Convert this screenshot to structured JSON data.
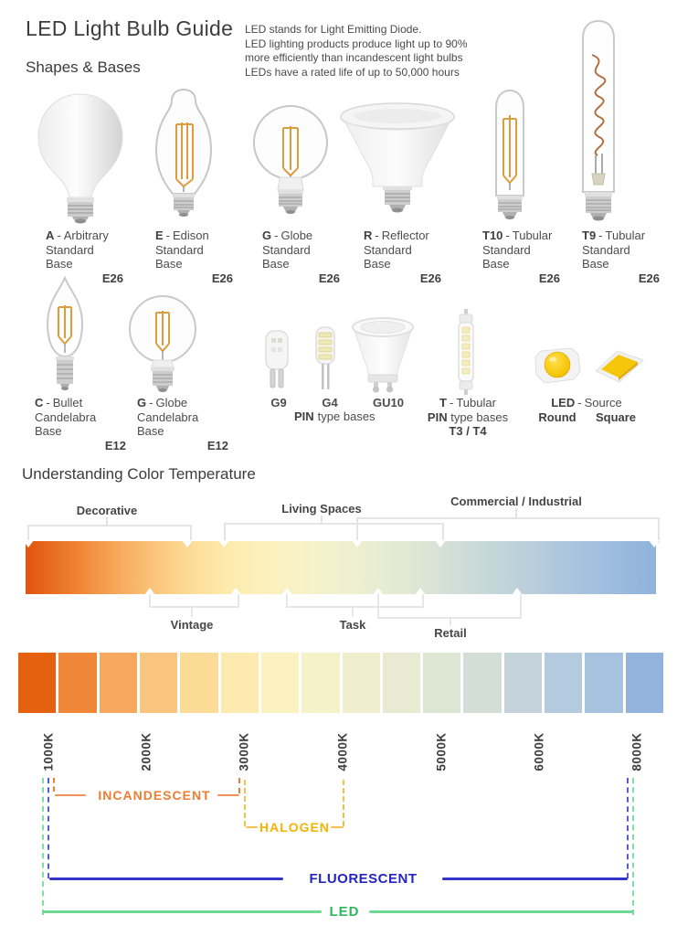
{
  "header": {
    "title": "LED Light Bulb Guide",
    "subtitle": "Shapes & Bases",
    "description_lines": [
      "LED stands for Light Emitting Diode.",
      "LED lighting products produce light up to 90%",
      "more efficiently than incandescent light bulbs",
      "LEDs have a rated life of up to 50,000 hours"
    ]
  },
  "shapes": {
    "row1": [
      {
        "code": "A",
        "sep": "-",
        "name": "Arbitrary",
        "base": "Standard Base",
        "socket": "E26"
      },
      {
        "code": "E",
        "sep": "-",
        "name": "Edison",
        "base": "Standard Base",
        "socket": "E26"
      },
      {
        "code": "G",
        "sep": "-",
        "name": "Globe",
        "base": "Standard Base",
        "socket": "E26"
      },
      {
        "code": "R",
        "sep": "-",
        "name": "Reflector",
        "base": "Standard Base",
        "socket": "E26"
      },
      {
        "code": "T10",
        "sep": "-",
        "name": "Tubular",
        "base": "Standard Base",
        "socket": "E26"
      },
      {
        "code": "T9",
        "sep": "-",
        "name": "Tubular",
        "base": "Standard Base",
        "socket": "E26"
      }
    ],
    "row2": [
      {
        "code": "C",
        "sep": "-",
        "name": "Bullet",
        "base": "Candelabra Base",
        "socket": "E12"
      },
      {
        "code": "G",
        "sep": "-",
        "name": "Globe",
        "base": "Candelabra Base",
        "socket": "E12"
      }
    ],
    "pin_group": {
      "g9": "G9",
      "g4": "G4",
      "gu10": "GU10",
      "pin": "PIN",
      "pin_rest": "type bases"
    },
    "t_group": {
      "code": "T",
      "sep": "-",
      "name": "Tubular",
      "pin": "PIN",
      "pin_rest": "type bases",
      "sizes": "T3 / T4"
    },
    "led_group": {
      "code": "LED",
      "sep": "-",
      "name": "Source",
      "round": "Round",
      "square": "Square"
    }
  },
  "color_temperature": {
    "section_title": "Understanding Color Temperature",
    "zones_top": [
      {
        "label": "Decorative"
      },
      {
        "label": "Living Spaces"
      },
      {
        "label": "Commercial / Industrial"
      }
    ],
    "zones_bottom": [
      {
        "label": "Vintage"
      },
      {
        "label": "Task"
      },
      {
        "label": "Retail"
      }
    ],
    "kelvin_labels": [
      "1000K",
      "2000K",
      "3000K",
      "4000K",
      "5000K",
      "6000K",
      "8000K"
    ],
    "gradient_left_color": "#e0540e",
    "gradient_right_color": "#8fb3dd",
    "segment_colors": [
      "#e6610f",
      "#ef8638",
      "#f6a95e",
      "#f9c47d",
      "#fbdc97",
      "#fdeaae",
      "#fbf1c1",
      "#f5f2ca",
      "#efefce",
      "#e8ebd1",
      "#dde5d3",
      "#d2ded6",
      "#c4d3da",
      "#b4cade",
      "#a7c2df",
      "#93b3dd"
    ],
    "technologies": [
      {
        "label": "INCANDESCENT",
        "color": "#ed7d31",
        "from": "1000K",
        "to": "3000K"
      },
      {
        "label": "HALOGEN",
        "color": "#f5b301",
        "from": "3000K",
        "to": "4000K"
      },
      {
        "label": "FLUORESCENT",
        "color": "#2424c0",
        "from": "1000K",
        "to": "8000K"
      },
      {
        "label": "LED",
        "color": "#2eb85c",
        "from": "1000K",
        "to": "8000K"
      }
    ]
  }
}
